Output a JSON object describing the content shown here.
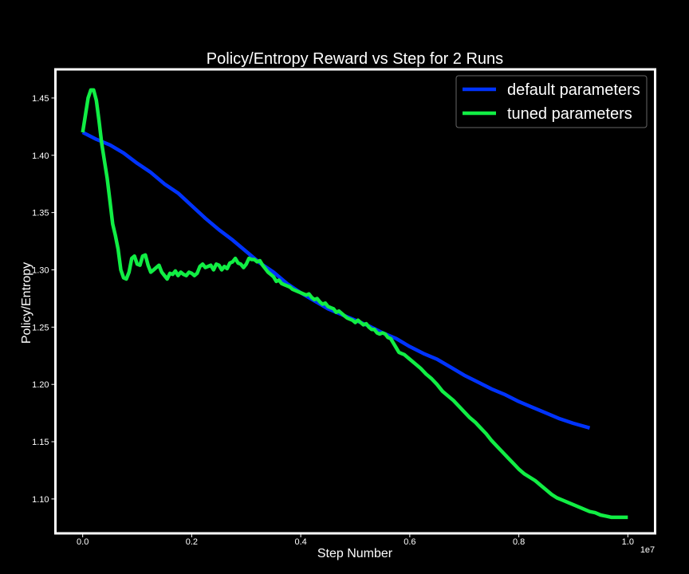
{
  "chart_data": {
    "type": "line",
    "title": "Policy/Entropy Reward vs Step for 2 Runs",
    "xlabel": "Step Number",
    "ylabel": "Policy/Entropy",
    "x_offset_label": "1e7",
    "xlim": [
      -0.05,
      1.05
    ],
    "ylim": [
      1.07,
      1.475
    ],
    "xticks": [
      0.0,
      0.2,
      0.4,
      0.6,
      0.8,
      1.0
    ],
    "xtick_labels": [
      "0.0",
      "0.2",
      "0.4",
      "0.6",
      "0.8",
      "1.0"
    ],
    "yticks": [
      1.1,
      1.15,
      1.2,
      1.25,
      1.3,
      1.35,
      1.4,
      1.45
    ],
    "ytick_labels": [
      "1.10",
      "1.15",
      "1.20",
      "1.25",
      "1.30",
      "1.35",
      "1.40",
      "1.45"
    ],
    "grid": false,
    "legend_position": "top-right",
    "series": [
      {
        "name": "default parameters",
        "color": "#0033ff",
        "points": [
          [
            0.0,
            1.42
          ],
          [
            0.025,
            1.414
          ],
          [
            0.05,
            1.409
          ],
          [
            0.075,
            1.402
          ],
          [
            0.1,
            1.393
          ],
          [
            0.125,
            1.385
          ],
          [
            0.15,
            1.375
          ],
          [
            0.175,
            1.367
          ],
          [
            0.2,
            1.356
          ],
          [
            0.225,
            1.345
          ],
          [
            0.25,
            1.335
          ],
          [
            0.275,
            1.326
          ],
          [
            0.3,
            1.316
          ],
          [
            0.325,
            1.306
          ],
          [
            0.35,
            1.298
          ],
          [
            0.375,
            1.288
          ],
          [
            0.4,
            1.28
          ],
          [
            0.425,
            1.273
          ],
          [
            0.45,
            1.266
          ],
          [
            0.475,
            1.261
          ],
          [
            0.5,
            1.256
          ],
          [
            0.525,
            1.251
          ],
          [
            0.55,
            1.245
          ],
          [
            0.575,
            1.24
          ],
          [
            0.6,
            1.233
          ],
          [
            0.625,
            1.227
          ],
          [
            0.65,
            1.222
          ],
          [
            0.675,
            1.215
          ],
          [
            0.7,
            1.208
          ],
          [
            0.725,
            1.202
          ],
          [
            0.75,
            1.196
          ],
          [
            0.775,
            1.191
          ],
          [
            0.8,
            1.185
          ],
          [
            0.825,
            1.18
          ],
          [
            0.85,
            1.175
          ],
          [
            0.875,
            1.17
          ],
          [
            0.9,
            1.166
          ],
          [
            0.93,
            1.162
          ]
        ]
      },
      {
        "name": "tuned parameters",
        "color": "#11ee44",
        "points": [
          [
            0.0,
            1.42
          ],
          [
            0.005,
            1.435
          ],
          [
            0.01,
            1.45
          ],
          [
            0.015,
            1.457
          ],
          [
            0.02,
            1.457
          ],
          [
            0.025,
            1.448
          ],
          [
            0.03,
            1.43
          ],
          [
            0.035,
            1.41
          ],
          [
            0.04,
            1.395
          ],
          [
            0.045,
            1.38
          ],
          [
            0.05,
            1.36
          ],
          [
            0.055,
            1.34
          ],
          [
            0.06,
            1.33
          ],
          [
            0.065,
            1.318
          ],
          [
            0.07,
            1.3
          ],
          [
            0.075,
            1.293
          ],
          [
            0.08,
            1.292
          ],
          [
            0.085,
            1.298
          ],
          [
            0.09,
            1.31
          ],
          [
            0.095,
            1.312
          ],
          [
            0.1,
            1.305
          ],
          [
            0.105,
            1.304
          ],
          [
            0.11,
            1.312
          ],
          [
            0.115,
            1.313
          ],
          [
            0.12,
            1.304
          ],
          [
            0.125,
            1.298
          ],
          [
            0.13,
            1.3
          ],
          [
            0.135,
            1.302
          ],
          [
            0.14,
            1.304
          ],
          [
            0.145,
            1.298
          ],
          [
            0.15,
            1.295
          ],
          [
            0.155,
            1.292
          ],
          [
            0.16,
            1.297
          ],
          [
            0.165,
            1.296
          ],
          [
            0.17,
            1.299
          ],
          [
            0.175,
            1.295
          ],
          [
            0.18,
            1.298
          ],
          [
            0.185,
            1.296
          ],
          [
            0.19,
            1.295
          ],
          [
            0.195,
            1.298
          ],
          [
            0.2,
            1.297
          ],
          [
            0.205,
            1.295
          ],
          [
            0.21,
            1.297
          ],
          [
            0.215,
            1.303
          ],
          [
            0.22,
            1.305
          ],
          [
            0.225,
            1.302
          ],
          [
            0.23,
            1.303
          ],
          [
            0.235,
            1.304
          ],
          [
            0.24,
            1.3
          ],
          [
            0.245,
            1.305
          ],
          [
            0.25,
            1.304
          ],
          [
            0.255,
            1.3
          ],
          [
            0.26,
            1.303
          ],
          [
            0.265,
            1.301
          ],
          [
            0.27,
            1.306
          ],
          [
            0.275,
            1.307
          ],
          [
            0.28,
            1.31
          ],
          [
            0.285,
            1.306
          ],
          [
            0.29,
            1.305
          ],
          [
            0.295,
            1.302
          ],
          [
            0.3,
            1.305
          ],
          [
            0.305,
            1.31
          ],
          [
            0.31,
            1.309
          ],
          [
            0.315,
            1.309
          ],
          [
            0.32,
            1.307
          ],
          [
            0.325,
            1.308
          ],
          [
            0.33,
            1.304
          ],
          [
            0.335,
            1.301
          ],
          [
            0.34,
            1.298
          ],
          [
            0.345,
            1.296
          ],
          [
            0.35,
            1.294
          ],
          [
            0.355,
            1.29
          ],
          [
            0.36,
            1.291
          ],
          [
            0.365,
            1.288
          ],
          [
            0.37,
            1.287
          ],
          [
            0.375,
            1.286
          ],
          [
            0.38,
            1.285
          ],
          [
            0.385,
            1.283
          ],
          [
            0.39,
            1.282
          ],
          [
            0.395,
            1.281
          ],
          [
            0.4,
            1.28
          ],
          [
            0.405,
            1.279
          ],
          [
            0.41,
            1.278
          ],
          [
            0.415,
            1.279
          ],
          [
            0.42,
            1.276
          ],
          [
            0.425,
            1.274
          ],
          [
            0.43,
            1.275
          ],
          [
            0.435,
            1.272
          ],
          [
            0.44,
            1.27
          ],
          [
            0.445,
            1.271
          ],
          [
            0.45,
            1.268
          ],
          [
            0.455,
            1.267
          ],
          [
            0.46,
            1.266
          ],
          [
            0.465,
            1.263
          ],
          [
            0.47,
            1.264
          ],
          [
            0.475,
            1.262
          ],
          [
            0.48,
            1.26
          ],
          [
            0.485,
            1.258
          ],
          [
            0.49,
            1.257
          ],
          [
            0.495,
            1.256
          ],
          [
            0.5,
            1.254
          ],
          [
            0.505,
            1.256
          ],
          [
            0.51,
            1.254
          ],
          [
            0.515,
            1.252
          ],
          [
            0.52,
            1.253
          ],
          [
            0.525,
            1.25
          ],
          [
            0.53,
            1.248
          ],
          [
            0.535,
            1.248
          ],
          [
            0.54,
            1.245
          ],
          [
            0.545,
            1.244
          ],
          [
            0.55,
            1.245
          ],
          [
            0.555,
            1.244
          ],
          [
            0.56,
            1.241
          ],
          [
            0.565,
            1.24
          ],
          [
            0.57,
            1.236
          ],
          [
            0.575,
            1.232
          ],
          [
            0.58,
            1.228
          ],
          [
            0.585,
            1.227
          ],
          [
            0.59,
            1.226
          ],
          [
            0.595,
            1.224
          ],
          [
            0.6,
            1.222
          ],
          [
            0.61,
            1.218
          ],
          [
            0.62,
            1.214
          ],
          [
            0.63,
            1.209
          ],
          [
            0.64,
            1.205
          ],
          [
            0.65,
            1.2
          ],
          [
            0.66,
            1.194
          ],
          [
            0.67,
            1.19
          ],
          [
            0.68,
            1.186
          ],
          [
            0.69,
            1.181
          ],
          [
            0.7,
            1.176
          ],
          [
            0.71,
            1.171
          ],
          [
            0.72,
            1.167
          ],
          [
            0.73,
            1.162
          ],
          [
            0.74,
            1.157
          ],
          [
            0.75,
            1.151
          ],
          [
            0.76,
            1.146
          ],
          [
            0.77,
            1.141
          ],
          [
            0.78,
            1.136
          ],
          [
            0.79,
            1.131
          ],
          [
            0.8,
            1.126
          ],
          [
            0.81,
            1.122
          ],
          [
            0.82,
            1.119
          ],
          [
            0.83,
            1.116
          ],
          [
            0.84,
            1.112
          ],
          [
            0.85,
            1.108
          ],
          [
            0.86,
            1.104
          ],
          [
            0.87,
            1.101
          ],
          [
            0.88,
            1.099
          ],
          [
            0.89,
            1.097
          ],
          [
            0.9,
            1.095
          ],
          [
            0.91,
            1.093
          ],
          [
            0.92,
            1.091
          ],
          [
            0.93,
            1.089
          ],
          [
            0.94,
            1.088
          ],
          [
            0.95,
            1.086
          ],
          [
            0.96,
            1.085
          ],
          [
            0.97,
            1.084
          ],
          [
            0.98,
            1.084
          ],
          [
            0.99,
            1.084
          ],
          [
            1.0,
            1.084
          ]
        ]
      }
    ]
  }
}
